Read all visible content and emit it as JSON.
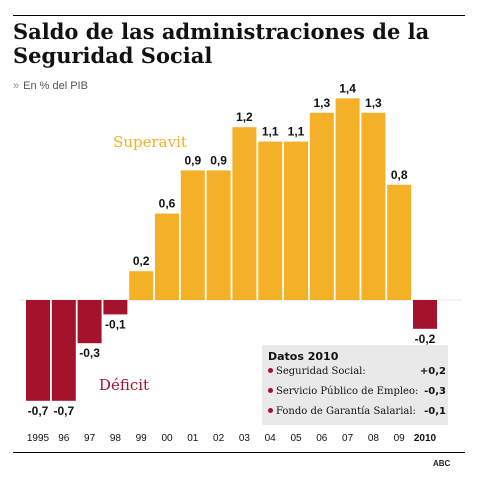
{
  "header": {
    "title": "Saldo de las administraciones de la Seguridad Social",
    "subtitle_marker": "»",
    "subtitle": "En % del PIB"
  },
  "chart_data": {
    "type": "bar",
    "categories": [
      "1995",
      "96",
      "97",
      "98",
      "99",
      "00",
      "01",
      "02",
      "03",
      "04",
      "05",
      "06",
      "07",
      "08",
      "09",
      "2010"
    ],
    "values": [
      -0.7,
      -0.7,
      -0.3,
      -0.1,
      0.2,
      0.6,
      0.9,
      0.9,
      1.2,
      1.1,
      1.1,
      1.3,
      1.4,
      1.3,
      0.8,
      -0.2
    ],
    "labels": [
      "-0,7",
      "-0,7",
      "-0,3",
      "-0,1",
      "0,2",
      "0,6",
      "0,9",
      "0,9",
      "1,2",
      "1,1",
      "1,1",
      "1,3",
      "1,4",
      "1,3",
      "0,8",
      "-0,2"
    ],
    "ylim": [
      -0.85,
      1.5
    ],
    "positive_annotation": "Superavit",
    "negative_annotation": "Déficit",
    "colors": {
      "positive": "#f4b027",
      "negative": "#a3132c"
    },
    "grid": false
  },
  "datos": {
    "title": "Datos 2010",
    "rows": [
      {
        "label": "Seguridad Social:",
        "value": "+0,2"
      },
      {
        "label": "Servicio Público de Empleo:",
        "value": "-0,3"
      },
      {
        "label": "Fondo de Garantía Salarial:",
        "value": "-0,1"
      }
    ]
  },
  "source": "ABC"
}
